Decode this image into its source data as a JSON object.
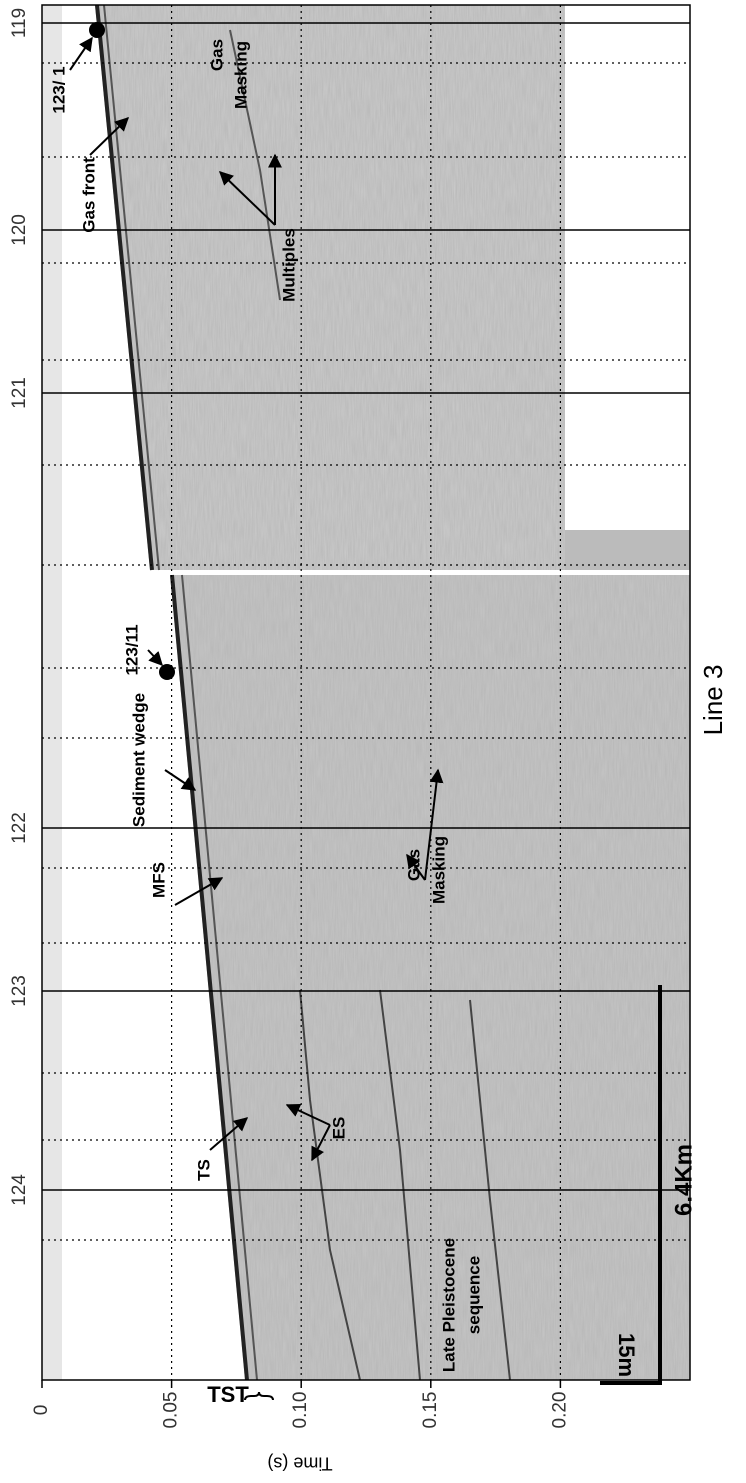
{
  "chart_data": {
    "type": "seismic-profile",
    "x_label": "Time (s)",
    "xlim": [
      0,
      0.25
    ],
    "xticks": [
      0,
      {
        "value": 0.05,
        "label": "0.05"
      },
      {
        "value": 0.1,
        "label": "0.10"
      },
      0.15,
      {
        "value": 0.2,
        "label": "0.20"
      }
    ],
    "shotpoints": [
      "119",
      "120",
      "121",
      "122",
      "123",
      "124"
    ],
    "annotations": [
      "Gas",
      "Masking",
      "Multiples",
      "Gas front",
      "123/ 1",
      "123/11",
      "Sediment wedge",
      "MFS",
      "Gas",
      "Masking",
      "TS",
      "ES",
      "Late Pleistocene",
      "sequence"
    ],
    "scale_bar_horizontal": "6.4Km",
    "scale_bar_vertical": "15m",
    "bracket_label": "TST",
    "line_label": "Line 3"
  }
}
